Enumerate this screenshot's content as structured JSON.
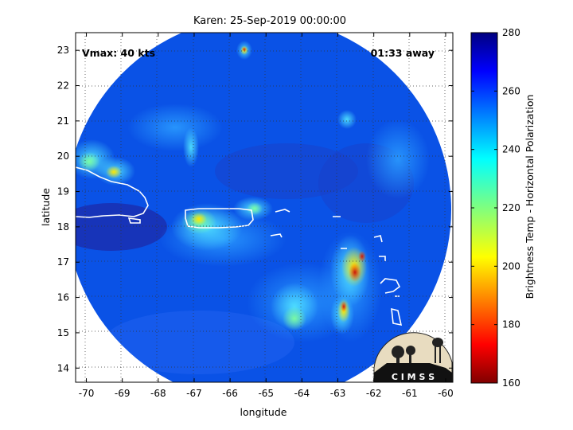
{
  "title": "Karen: 25-Sep-2019 00:00:00",
  "vmax_label": "Vmax: 40 kts",
  "time_away_label": "01:33 away",
  "xlabel": "longitude",
  "ylabel": "latitude",
  "colorbar_label": "Brightness Temp - Horizontal Polarization",
  "logo_text": "C I M S S",
  "map": {
    "lon_range": [
      -70.3,
      -59.8
    ],
    "lat_range": [
      13.6,
      23.5
    ],
    "lon_ticks": [
      -70,
      -69,
      -68,
      -67,
      -66,
      -65,
      -64,
      -63,
      -62,
      -61,
      -60
    ],
    "lat_ticks": [
      14,
      15,
      16,
      17,
      18,
      19,
      20,
      21,
      22,
      23
    ],
    "grid": "dotted",
    "swath_center": [
      -65.0,
      18.4
    ],
    "swath_radius_deg": 4.9,
    "coastline_color": "#ffffff"
  },
  "colorbar": {
    "range": [
      160,
      280
    ],
    "ticks": [
      160,
      180,
      200,
      220,
      240,
      260,
      280
    ],
    "colormap": "jet"
  },
  "colors": {
    "background_cold": "#0a52e6",
    "ocean_warm": "#1530b5",
    "convection_light": "#19c8ff",
    "convection_mid": "#ffe600",
    "convection_core": "#d21a10"
  }
}
